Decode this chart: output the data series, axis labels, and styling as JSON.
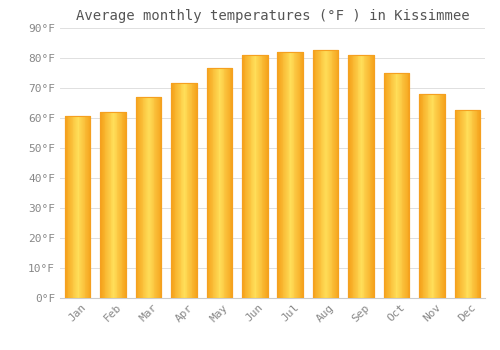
{
  "title": "Average monthly temperatures (°F ) in Kissimmee",
  "months": [
    "Jan",
    "Feb",
    "Mar",
    "Apr",
    "May",
    "Jun",
    "Jul",
    "Aug",
    "Sep",
    "Oct",
    "Nov",
    "Dec"
  ],
  "values": [
    60.5,
    62,
    67,
    71.5,
    76.5,
    81,
    82,
    82.5,
    81,
    75,
    68,
    62.5
  ],
  "bar_color_center": "#FFCC44",
  "bar_color_edge": "#F5A020",
  "background_color": "#FFFFFF",
  "ylim": [
    0,
    90
  ],
  "yticks": [
    0,
    10,
    20,
    30,
    40,
    50,
    60,
    70,
    80,
    90
  ],
  "title_fontsize": 10,
  "tick_fontsize": 8,
  "grid_color": "#E0E0E0",
  "tick_color": "#888888"
}
